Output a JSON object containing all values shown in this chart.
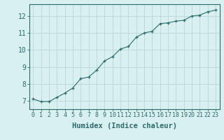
{
  "x": [
    0,
    1,
    2,
    3,
    4,
    5,
    6,
    7,
    8,
    9,
    10,
    11,
    12,
    13,
    14,
    15,
    16,
    17,
    18,
    19,
    20,
    21,
    22,
    23
  ],
  "y": [
    7.1,
    6.95,
    6.95,
    7.2,
    7.45,
    7.75,
    8.3,
    8.4,
    8.8,
    9.35,
    9.6,
    10.05,
    10.2,
    10.75,
    11.0,
    11.1,
    11.55,
    11.6,
    11.7,
    11.75,
    12.0,
    12.05,
    12.25,
    12.35
  ],
  "xlim": [
    -0.5,
    23.5
  ],
  "ylim": [
    6.5,
    12.7
  ],
  "yticks": [
    7,
    8,
    9,
    10,
    11,
    12
  ],
  "xticks": [
    0,
    1,
    2,
    3,
    4,
    5,
    6,
    7,
    8,
    9,
    10,
    11,
    12,
    13,
    14,
    15,
    16,
    17,
    18,
    19,
    20,
    21,
    22,
    23
  ],
  "xlabel": "Humidex (Indice chaleur)",
  "line_color": "#2d6b6b",
  "marker": "+",
  "bg_color": "#d8f0f0",
  "grid_color": "#b8d8d8",
  "axis_color": "#2d6b6b",
  "tick_color": "#2d6b6b",
  "label_color": "#2d6b6b",
  "xlabel_fontsize": 7.5,
  "ytick_fontsize": 7,
  "xtick_fontsize": 6
}
